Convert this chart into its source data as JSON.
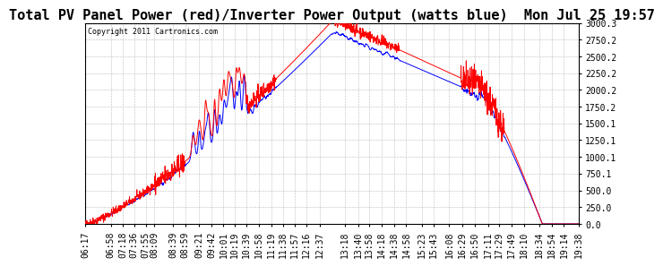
{
  "title": "Total PV Panel Power (red)/Inverter Power Output (watts blue)  Mon Jul 25 19:57",
  "copyright_text": "Copyright 2011 Cartronics.com",
  "ylim": [
    0.0,
    3000.3
  ],
  "yticks": [
    0.0,
    250.0,
    500.0,
    750.1,
    1000.1,
    1250.1,
    1500.1,
    1750.2,
    2000.2,
    2250.2,
    2500.2,
    2750.2,
    3000.3
  ],
  "ytick_labels": [
    "0.0",
    "250.0",
    "500.0",
    "750.1",
    "1000.1",
    "1250.1",
    "1500.1",
    "1750.2",
    "2000.2",
    "2250.2",
    "2500.2",
    "2750.2",
    "3000.3"
  ],
  "x_labels": [
    "06:17",
    "06:58",
    "07:18",
    "07:36",
    "07:55",
    "08:09",
    "08:39",
    "08:59",
    "09:21",
    "09:42",
    "10:01",
    "10:19",
    "10:39",
    "10:58",
    "11:19",
    "11:38",
    "11:57",
    "12:16",
    "12:37",
    "13:18",
    "13:40",
    "13:58",
    "14:18",
    "14:38",
    "14:58",
    "15:23",
    "15:43",
    "16:08",
    "16:29",
    "16:50",
    "17:11",
    "17:29",
    "17:49",
    "18:10",
    "18:34",
    "18:54",
    "19:14",
    "19:38"
  ],
  "line_red_color": "#ff0000",
  "line_blue_color": "#0000ff",
  "bg_color": "#ffffff",
  "grid_color": "#bbbbbb",
  "title_fontsize": 11,
  "tick_fontsize": 7
}
